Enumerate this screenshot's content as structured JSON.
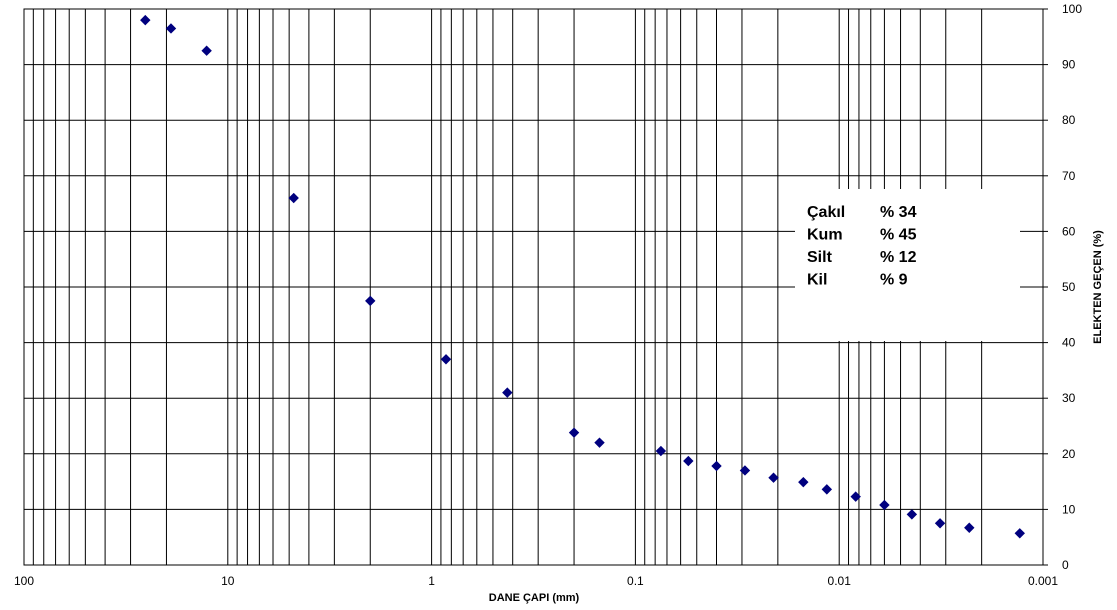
{
  "chart_data": {
    "type": "scatter",
    "title": "",
    "xlabel": "DANE ÇAPI (mm)",
    "ylabel": "ELEKTEN GEÇEN  (%)",
    "x_scale": "log",
    "x_reversed": true,
    "xlim": [
      100,
      0.001
    ],
    "ylim": [
      0,
      100
    ],
    "grid": true,
    "x_ticks": [
      100,
      10,
      1,
      0.1,
      0.01,
      0.001
    ],
    "x_tick_labels": [
      "100",
      "10",
      "1",
      "0.1",
      "0.01",
      "0.001"
    ],
    "y_ticks": [
      0,
      10,
      20,
      30,
      40,
      50,
      60,
      70,
      80,
      90,
      100
    ],
    "y_tick_labels": [
      "0",
      "10",
      "20",
      "30",
      "40",
      "50",
      "60",
      "70",
      "80",
      "90",
      "100"
    ],
    "y_axis_side": "right",
    "marker": "diamond",
    "marker_color": "#00007f",
    "series": [
      {
        "points": [
          {
            "x": 25.4,
            "y": 98
          },
          {
            "x": 19.0,
            "y": 96.5
          },
          {
            "x": 12.7,
            "y": 92.5
          },
          {
            "x": 4.75,
            "y": 66
          },
          {
            "x": 2.0,
            "y": 47.5
          },
          {
            "x": 0.85,
            "y": 37
          },
          {
            "x": 0.425,
            "y": 31
          },
          {
            "x": 0.2,
            "y": 23.8
          },
          {
            "x": 0.15,
            "y": 22
          },
          {
            "x": 0.075,
            "y": 20.5
          },
          {
            "x": 0.055,
            "y": 18.7
          },
          {
            "x": 0.04,
            "y": 17.8
          },
          {
            "x": 0.029,
            "y": 17
          },
          {
            "x": 0.021,
            "y": 15.7
          },
          {
            "x": 0.015,
            "y": 14.9
          },
          {
            "x": 0.0115,
            "y": 13.6
          },
          {
            "x": 0.0083,
            "y": 12.3
          },
          {
            "x": 0.006,
            "y": 10.8
          },
          {
            "x": 0.0044,
            "y": 9.1
          },
          {
            "x": 0.0032,
            "y": 7.5
          },
          {
            "x": 0.0023,
            "y": 6.7
          },
          {
            "x": 0.0013,
            "y": 5.7
          }
        ]
      }
    ],
    "legend_box": {
      "position": "right",
      "entries": [
        {
          "name": "Çakıl",
          "value": "% 34"
        },
        {
          "name": "Kum",
          "value": " % 45"
        },
        {
          "name": "Silt",
          "value": "% 12"
        },
        {
          "name": "Kil",
          "value": "% 9"
        }
      ]
    }
  }
}
